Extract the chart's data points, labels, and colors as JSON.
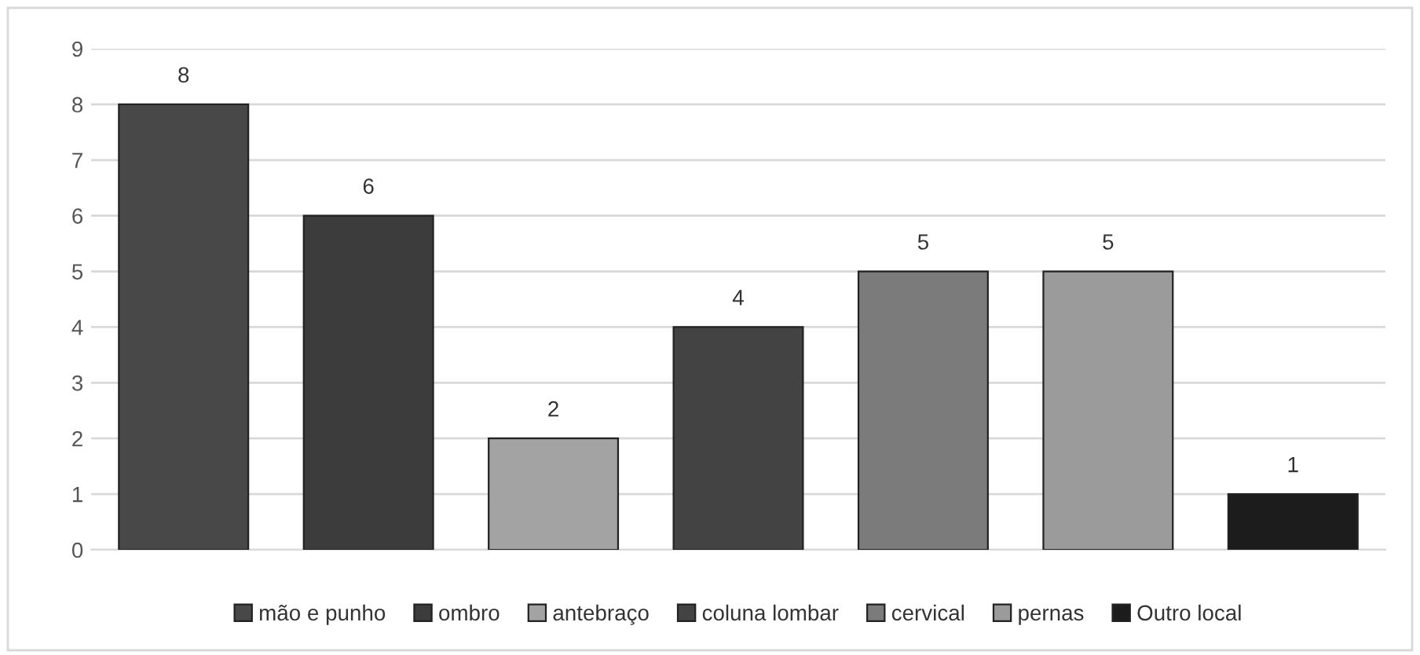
{
  "chart_data": {
    "type": "bar",
    "categories": [
      null,
      null,
      null,
      null,
      null,
      null,
      null
    ],
    "series": [
      {
        "name": "mão e punho",
        "color": "#484848",
        "values": [
          8,
          null,
          null,
          null,
          null,
          null,
          null
        ]
      },
      {
        "name": "ombro",
        "color": "#3c3c3c",
        "values": [
          null,
          6,
          null,
          null,
          null,
          null,
          null
        ]
      },
      {
        "name": "antebraço",
        "color": "#a3a3a3",
        "values": [
          null,
          null,
          2,
          null,
          null,
          null,
          null
        ]
      },
      {
        "name": "coluna lombar",
        "color": "#434343",
        "values": [
          null,
          null,
          null,
          4,
          null,
          null,
          null
        ]
      },
      {
        "name": "cervical",
        "color": "#7b7b7b",
        "values": [
          null,
          null,
          null,
          null,
          5,
          null,
          null
        ]
      },
      {
        "name": "pernas",
        "color": "#9b9b9b",
        "values": [
          null,
          null,
          null,
          null,
          null,
          5,
          null
        ]
      },
      {
        "name": "Outro local",
        "color": "#1c1c1c",
        "values": [
          null,
          null,
          null,
          null,
          null,
          null,
          1
        ]
      }
    ],
    "ylim": [
      0,
      9
    ],
    "yticks": [
      0,
      1,
      2,
      3,
      4,
      5,
      6,
      7,
      8,
      9
    ],
    "grid": "y",
    "legend": "bottom",
    "data_labels": true
  }
}
